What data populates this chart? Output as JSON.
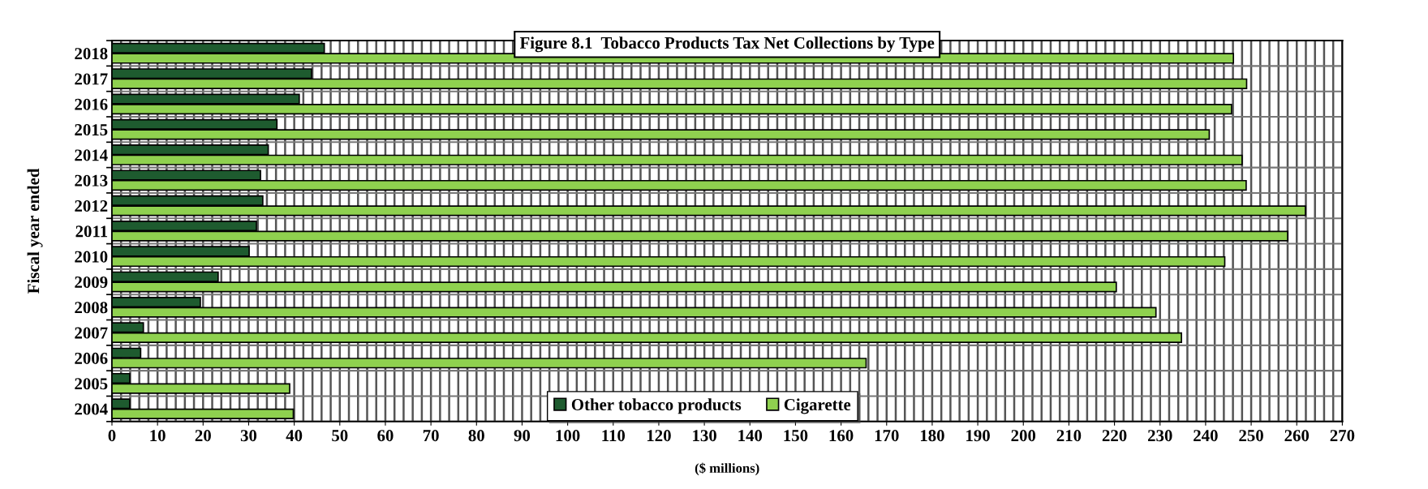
{
  "chart_data": {
    "type": "bar",
    "orientation": "horizontal",
    "title": "Figure 8.1  Tobacco Products Tax Net Collections by Type",
    "xlabel": "($ millions)",
    "ylabel": "Fiscal year ended",
    "categories": [
      "2018",
      "2017",
      "2016",
      "2015",
      "2014",
      "2013",
      "2012",
      "2011",
      "2010",
      "2009",
      "2008",
      "2007",
      "2006",
      "2005",
      "2004"
    ],
    "series": [
      {
        "name": "Other tobacco products",
        "color": "#1e5b2f",
        "values": [
          46.6,
          43.8,
          41.1,
          36.2,
          34.3,
          32.6,
          33.1,
          31.7,
          30.1,
          23.3,
          19.4,
          6.9,
          6.3,
          3.9,
          3.9
        ]
      },
      {
        "name": "Cigarette",
        "color": "#8fd14f",
        "values": [
          246.1,
          249.0,
          245.7,
          240.8,
          248.0,
          248.9,
          261.9,
          258.0,
          244.2,
          220.4,
          229.1,
          234.7,
          165.5,
          39.0,
          39.8
        ]
      }
    ],
    "xlim": [
      0,
      270
    ],
    "xticks": [
      0,
      10,
      20,
      30,
      40,
      50,
      60,
      70,
      80,
      90,
      100,
      110,
      120,
      130,
      140,
      150,
      160,
      170,
      180,
      190,
      200,
      210,
      220,
      230,
      240,
      250,
      260,
      270
    ],
    "grid": true,
    "legend": "bottom"
  }
}
